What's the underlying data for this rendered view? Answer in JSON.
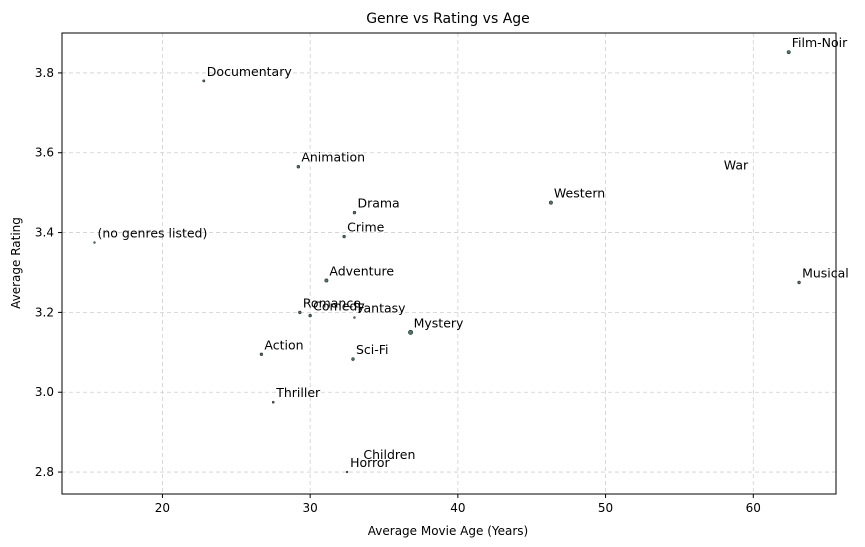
{
  "chart_data": {
    "type": "scatter",
    "title": "Genre vs Rating vs Age",
    "xlabel": "Average Movie Age (Years)",
    "ylabel": "Average Rating",
    "xlim": [
      13.2,
      65.6
    ],
    "ylim": [
      2.745,
      3.9
    ],
    "xticks": [
      20,
      30,
      40,
      50,
      60
    ],
    "yticks": [
      2.8,
      3.0,
      3.2,
      3.4,
      3.6,
      3.8
    ],
    "grid": true,
    "points": [
      {
        "label": "Film-Noir",
        "x": 62.4,
        "y": 3.852,
        "size": 3
      },
      {
        "label": "Documentary",
        "x": 22.8,
        "y": 3.78,
        "size": 2
      },
      {
        "label": "Animation",
        "x": 29.2,
        "y": 3.565,
        "size": 2.5
      },
      {
        "label": "War",
        "x": 57.8,
        "y": 3.545,
        "size": 0
      },
      {
        "label": "Western",
        "x": 46.3,
        "y": 3.475,
        "size": 3
      },
      {
        "label": "Drama",
        "x": 33.0,
        "y": 3.45,
        "size": 2.5
      },
      {
        "label": "(no genres listed)",
        "x": 15.4,
        "y": 3.375,
        "size": 1.5
      },
      {
        "label": "Crime",
        "x": 32.3,
        "y": 3.39,
        "size": 2.5
      },
      {
        "label": "Adventure",
        "x": 31.1,
        "y": 3.28,
        "size": 3
      },
      {
        "label": "Musical",
        "x": 63.1,
        "y": 3.275,
        "size": 2.5
      },
      {
        "label": "Romance",
        "x": 29.3,
        "y": 3.2,
        "size": 2.5
      },
      {
        "label": "Comedy",
        "x": 30.0,
        "y": 3.192,
        "size": 2.5
      },
      {
        "label": "Fantasy",
        "x": 33.0,
        "y": 3.187,
        "size": 1.5
      },
      {
        "label": "Mystery",
        "x": 36.8,
        "y": 3.15,
        "size": 4
      },
      {
        "label": "Action",
        "x": 26.7,
        "y": 3.095,
        "size": 2.5
      },
      {
        "label": "Sci-Fi",
        "x": 32.9,
        "y": 3.083,
        "size": 2.5
      },
      {
        "label": "Thriller",
        "x": 27.5,
        "y": 2.975,
        "size": 1.8
      },
      {
        "label": "Children",
        "x": 33.4,
        "y": 2.82,
        "size": 0
      },
      {
        "label": "Horror",
        "x": 32.5,
        "y": 2.8,
        "size": 1.5
      }
    ]
  }
}
